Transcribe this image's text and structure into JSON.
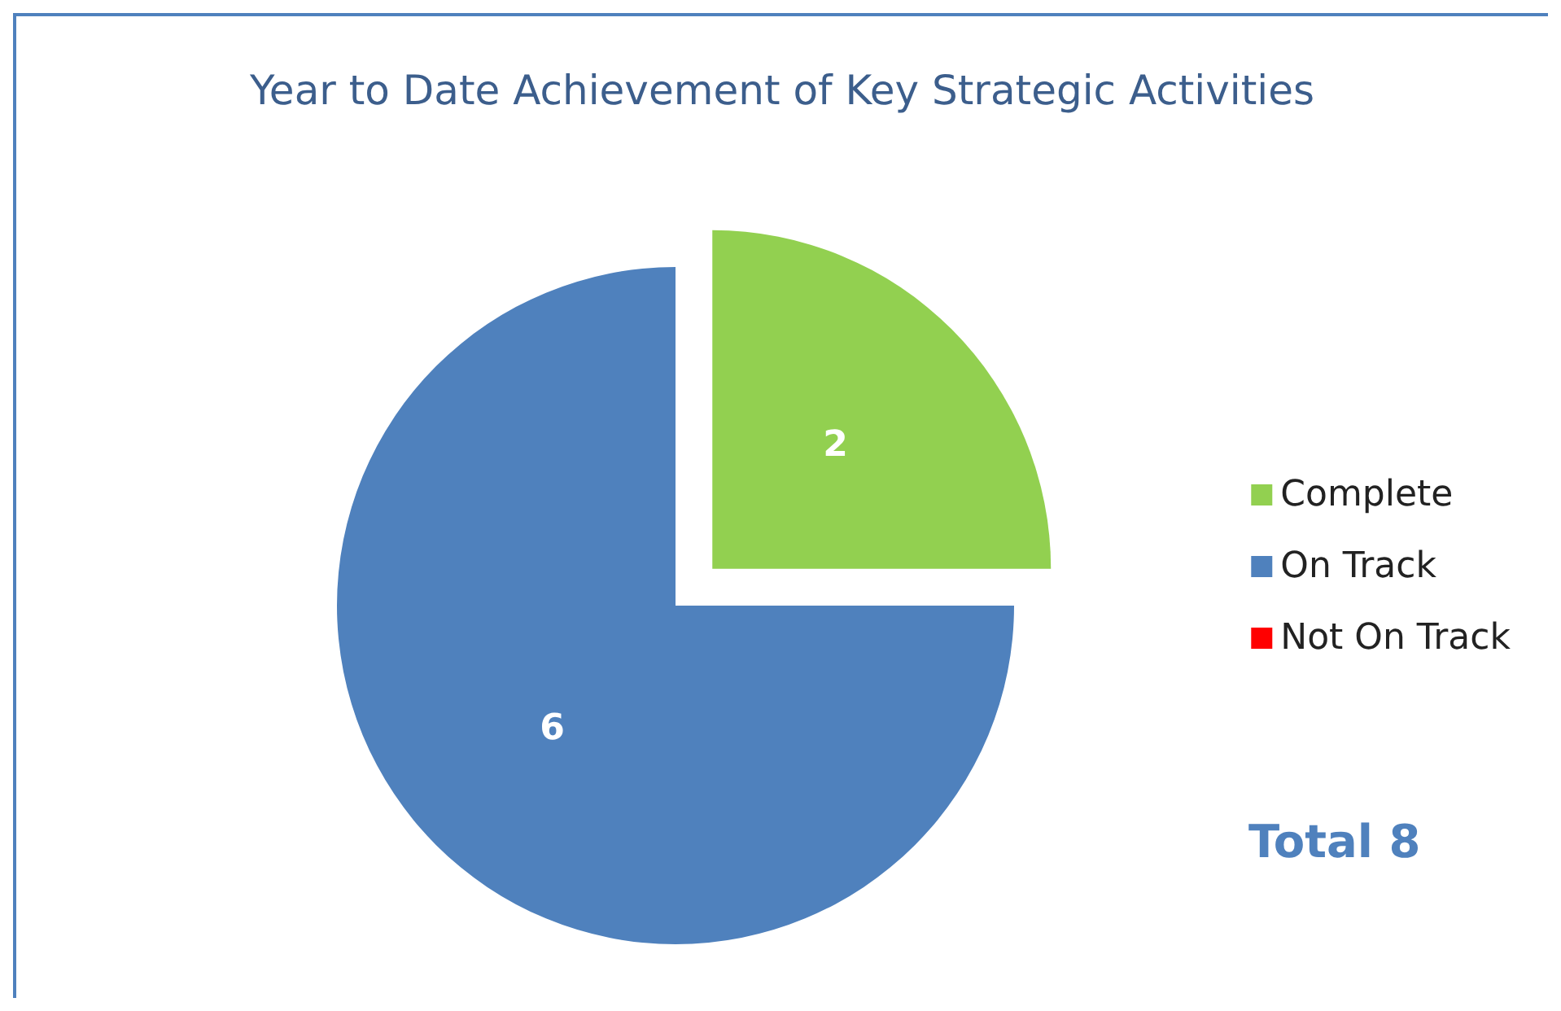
{
  "chart_data": {
    "type": "pie",
    "title": "Year to Date Achievement of Key Strategic Activities",
    "categories": [
      "Complete",
      "On Track",
      "Not On Track"
    ],
    "values": [
      2,
      6,
      0
    ],
    "colors": [
      "#92d050",
      "#4f81bd",
      "#ff0000"
    ],
    "value_labels": [
      "2",
      "6",
      null
    ],
    "legend": "right",
    "annotations": [
      "Total 8"
    ]
  }
}
